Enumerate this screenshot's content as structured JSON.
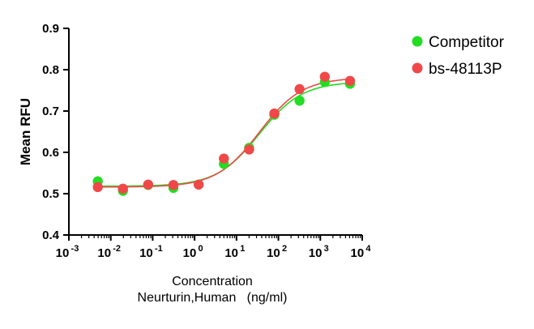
{
  "chart_data": {
    "type": "scatter",
    "title": "",
    "xscale": "log10",
    "xlim": [
      0.001,
      10000
    ],
    "ylim": [
      0.4,
      0.9
    ],
    "grid": false,
    "legend_position": "top-right",
    "xlabel_lines": [
      "Concentration",
      "Neurturin,Human   (ng/ml)"
    ],
    "ylabel": "Mean RFU",
    "x_ticks": [
      {
        "value": 0.001,
        "base": "10",
        "exp": "-3"
      },
      {
        "value": 0.01,
        "base": "10",
        "exp": "-2"
      },
      {
        "value": 0.1,
        "base": "10",
        "exp": "-1"
      },
      {
        "value": 1,
        "base": "10",
        "exp": "0"
      },
      {
        "value": 10,
        "base": "10",
        "exp": "1"
      },
      {
        "value": 100,
        "base": "10",
        "exp": "2"
      },
      {
        "value": 1000,
        "base": "10",
        "exp": "3"
      },
      {
        "value": 10000,
        "base": "10",
        "exp": "4"
      }
    ],
    "y_ticks": [
      {
        "value": 0.4,
        "label": "0.4"
      },
      {
        "value": 0.5,
        "label": "0.5"
      },
      {
        "value": 0.6,
        "label": "0.6"
      },
      {
        "value": 0.7,
        "label": "0.7"
      },
      {
        "value": 0.8,
        "label": "0.8"
      },
      {
        "value": 0.9,
        "label": "0.9"
      }
    ],
    "series": [
      {
        "name": "Competitor",
        "color": "#22dd22",
        "x": [
          0.0049,
          0.0195,
          0.078,
          0.3125,
          1.25,
          5,
          20,
          80,
          320,
          1280,
          5120
        ],
        "y": [
          0.53,
          0.507,
          0.521,
          0.514,
          0.522,
          0.572,
          0.611,
          0.691,
          0.725,
          0.77,
          0.766
        ],
        "fit": {
          "bottom": 0.518,
          "top": 0.771,
          "ec50": 35,
          "hill": 0.85
        }
      },
      {
        "name": "bs-48113P",
        "color": "#f04848",
        "x": [
          0.0049,
          0.0195,
          0.078,
          0.3125,
          1.25,
          5,
          20,
          80,
          320,
          1280,
          5120
        ],
        "y": [
          0.516,
          0.512,
          0.522,
          0.521,
          0.522,
          0.585,
          0.607,
          0.694,
          0.753,
          0.783,
          0.773
        ],
        "fit": {
          "bottom": 0.516,
          "top": 0.781,
          "ec50": 35,
          "hill": 0.85
        }
      }
    ]
  }
}
